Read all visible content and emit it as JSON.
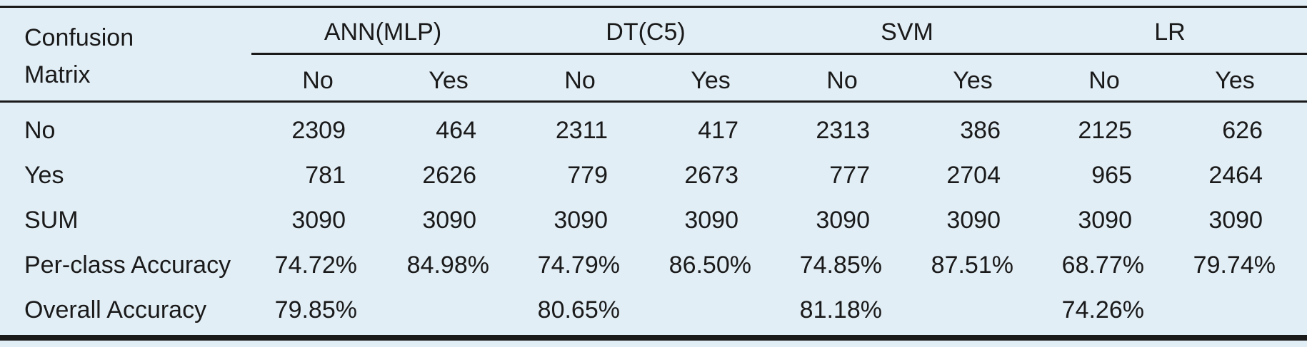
{
  "table": {
    "stub_header": [
      "Confusion",
      "Matrix"
    ],
    "groups": [
      "ANN(MLP)",
      "DT(C5)",
      "SVM",
      "LR"
    ],
    "subheaders": [
      "No",
      "Yes",
      "No",
      "Yes",
      "No",
      "Yes",
      "No",
      "Yes"
    ],
    "rows": [
      {
        "label": "No",
        "values": [
          "2309",
          "464",
          "2311",
          "417",
          "2313",
          "386",
          "2125",
          "626"
        ]
      },
      {
        "label": "Yes",
        "values": [
          "781",
          "2626",
          "779",
          "2673",
          "777",
          "2704",
          "965",
          "2464"
        ]
      },
      {
        "label": "SUM",
        "values": [
          "3090",
          "3090",
          "3090",
          "3090",
          "3090",
          "3090",
          "3090",
          "3090"
        ]
      },
      {
        "label": "Per-class Accuracy",
        "values": [
          "74.72%",
          "84.98%",
          "74.79%",
          "86.50%",
          "74.85%",
          "87.51%",
          "68.77%",
          "79.74%"
        ]
      },
      {
        "label": "Overall Accuracy",
        "values": [
          "79.85%",
          "",
          "80.65%",
          "",
          "81.18%",
          "",
          "74.26%",
          ""
        ]
      }
    ]
  }
}
